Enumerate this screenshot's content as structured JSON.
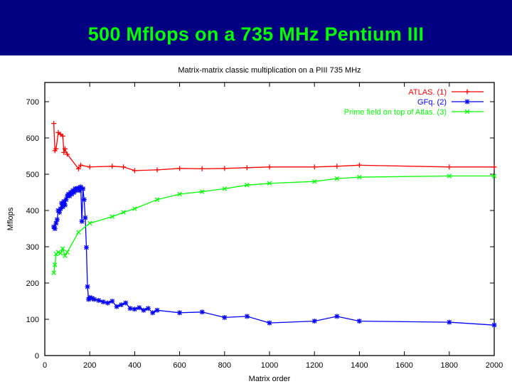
{
  "slide": {
    "title": "500 Mflops on a 735 MHz Pentium III",
    "title_color": "#00ff00",
    "banner_color": "#000080"
  },
  "chart_data": {
    "type": "line",
    "title": "Matrix-matrix classic multiplication on a PIII 735 MHz",
    "xlabel": "Matrix order",
    "ylabel": "Mflops",
    "xlim": [
      0,
      2000
    ],
    "ylim": [
      0,
      750
    ],
    "x_ticks": [
      0,
      200,
      400,
      600,
      800,
      1000,
      1200,
      1400,
      1600,
      1800,
      2000
    ],
    "x_tick_labels": [
      "0",
      "200",
      "400",
      "600",
      "800",
      "1000",
      "1200",
      "1400",
      "1600",
      "1800",
      "2000"
    ],
    "y_ticks": [
      0,
      100,
      200,
      300,
      400,
      500,
      600,
      700
    ],
    "y_tick_labels": [
      "0",
      "100",
      "200",
      "300",
      "400",
      "500",
      "600",
      "700"
    ],
    "grid": false,
    "legend_position": "top-right",
    "series": [
      {
        "name": "ATLAS. (1)",
        "color": "#ff0000",
        "marker": "plus",
        "x": [
          40,
          45,
          50,
          60,
          70,
          80,
          85,
          90,
          100,
          150,
          160,
          200,
          300,
          350,
          400,
          500,
          600,
          700,
          800,
          900,
          1000,
          1200,
          1300,
          1400,
          1800,
          2000
        ],
        "y": [
          640,
          565,
          570,
          615,
          610,
          605,
          560,
          570,
          555,
          515,
          525,
          520,
          522,
          520,
          510,
          512,
          516,
          515,
          516,
          518,
          520,
          520,
          522,
          525,
          520,
          520
        ]
      },
      {
        "name": "GFq. (2)",
        "color": "#0000ff",
        "marker": "star",
        "x": [
          40,
          45,
          50,
          55,
          60,
          65,
          70,
          75,
          80,
          85,
          90,
          95,
          100,
          105,
          110,
          115,
          120,
          125,
          130,
          135,
          140,
          145,
          150,
          155,
          160,
          165,
          170,
          175,
          180,
          185,
          190,
          195,
          200,
          210,
          220,
          240,
          260,
          280,
          300,
          320,
          340,
          360,
          380,
          400,
          420,
          440,
          460,
          480,
          500,
          600,
          700,
          800,
          900,
          1000,
          1200,
          1300,
          1400,
          1800,
          2000
        ],
        "y": [
          355,
          350,
          365,
          375,
          400,
          395,
          405,
          420,
          410,
          425,
          415,
          430,
          440,
          445,
          440,
          450,
          445,
          455,
          450,
          460,
          455,
          460,
          462,
          455,
          465,
          370,
          460,
          430,
          380,
          298,
          190,
          155,
          160,
          158,
          155,
          152,
          148,
          145,
          150,
          135,
          140,
          145,
          130,
          128,
          132,
          125,
          130,
          118,
          125,
          118,
          120,
          105,
          108,
          90,
          95,
          108,
          95,
          92,
          84
        ]
      },
      {
        "name": "Prime field on top of Atlas. (3)",
        "color": "#00ff00",
        "marker": "cross",
        "x": [
          40,
          45,
          50,
          60,
          70,
          80,
          90,
          100,
          150,
          200,
          300,
          350,
          400,
          500,
          600,
          700,
          800,
          900,
          1000,
          1200,
          1300,
          1400,
          1800,
          2000
        ],
        "y": [
          228,
          250,
          280,
          285,
          282,
          295,
          275,
          285,
          340,
          365,
          383,
          395,
          405,
          430,
          445,
          452,
          460,
          470,
          475,
          480,
          488,
          492,
          495,
          495
        ]
      }
    ]
  }
}
